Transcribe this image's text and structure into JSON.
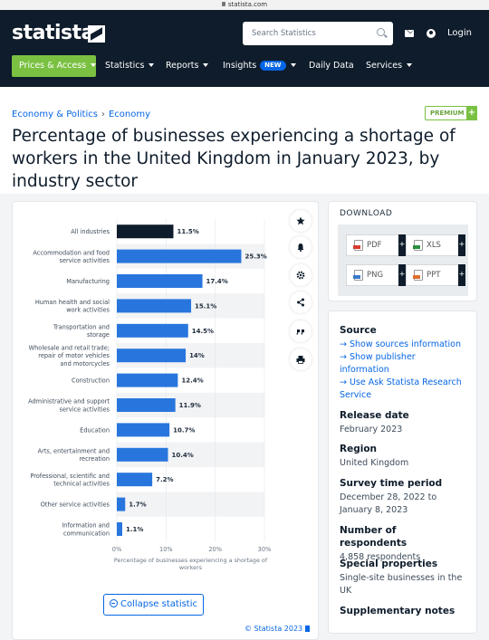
{
  "browser": {
    "url": "statista.com"
  },
  "nav": {
    "logo": "statista",
    "search_placeholder": "Search Statistics",
    "login": "Login",
    "menu": [
      {
        "label": "Prices & Access"
      },
      {
        "label": "Statistics"
      },
      {
        "label": "Reports"
      },
      {
        "label": "Insights",
        "badge": "NEW"
      },
      {
        "label": "Daily Data"
      },
      {
        "label": "Services"
      }
    ]
  },
  "breadcrumb": [
    "Economy & Politics",
    "Economy"
  ],
  "premium_label": "PREMIUM",
  "page_title": "Percentage of businesses experiencing a shortage of workers in the United Kingdom in January 2023, by industry sector",
  "chart_data": {
    "type": "bar",
    "orientation": "horizontal",
    "categories": [
      "All industries",
      "Accommodation and food service activities",
      "Manufacturing",
      "Human health and social work activities",
      "Transportation and storage",
      "Wholesale and retail trade; repair of motor vehicles and motorcycles",
      "Construction",
      "Administrative and support service activities",
      "Education",
      "Arts, entertainment and recreation",
      "Professional, scientific and technical activities",
      "Other service activities",
      "Information and communication"
    ],
    "category_lines": [
      [
        "All industries"
      ],
      [
        "Accommodation and food",
        "service activities"
      ],
      [
        "Manufacturing"
      ],
      [
        "Human health and social",
        "work activities"
      ],
      [
        "Transportation and",
        "storage"
      ],
      [
        "Wholesale and retail trade;",
        "repair of motor vehicles",
        "and motorcycles"
      ],
      [
        "Construction"
      ],
      [
        "Administrative and support",
        "service activities"
      ],
      [
        "Education"
      ],
      [
        "Arts, entertainment and",
        "recreation"
      ],
      [
        "Professional, scientific and",
        "technical activities"
      ],
      [
        "Other service activities"
      ],
      [
        "Information and",
        "communication"
      ]
    ],
    "values": [
      11.5,
      25.3,
      17.4,
      15.1,
      14.5,
      14,
      12.4,
      11.9,
      10.7,
      10.4,
      7.2,
      1.7,
      1.1
    ],
    "value_labels": [
      "11.5%",
      "25.3%",
      "17.4%",
      "15.1%",
      "14.5%",
      "14%",
      "12.4%",
      "11.9%",
      "10.7%",
      "10.4%",
      "7.2%",
      "1.7%",
      "1.1%"
    ],
    "highlight_index": 0,
    "colors": {
      "bar": "#2876dd",
      "highlight": "#0e1c2b"
    },
    "xlim": [
      0,
      30
    ],
    "xticks": [
      "0%",
      "10%",
      "20%",
      "30%"
    ],
    "xtick_values": [
      0,
      10,
      20,
      30
    ],
    "xlabel_lines": [
      "Percentage of businesses experiencing a shortage of",
      "workers"
    ],
    "grid": "alternating row bands",
    "legend": "none"
  },
  "toolbar": [
    "star-icon",
    "bell-icon",
    "gear-icon",
    "share-icon",
    "quote-icon",
    "print-icon"
  ],
  "collapse_label": "Collapse statistic",
  "copyright": "© Statista 2023",
  "download": {
    "title": "DOWNLOAD",
    "formats": [
      "PDF",
      "XLS",
      "PNG",
      "PPT"
    ],
    "plus": "+"
  },
  "info": {
    "source_heading": "Source",
    "source_links": [
      "Show sources information",
      "Show publisher information",
      "Use Ask Statista Research Service"
    ],
    "release_heading": "Release date",
    "release_value": "February 2023",
    "region_heading": "Region",
    "region_value": "United Kingdom",
    "survey_heading": "Survey time period",
    "survey_value": "December 28, 2022 to January 8, 2023",
    "respondents_heading": "Number of respondents",
    "respondents_value": "4,858 respondents",
    "special_heading": "Special properties",
    "special_value": "Single-site businesses in the UK",
    "supplementary_heading": "Supplementary notes"
  }
}
